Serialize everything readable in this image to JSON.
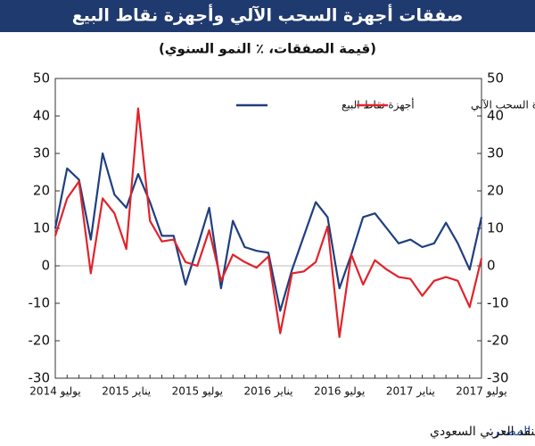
{
  "chart_data": {
    "type": "line",
    "title": "صفقات أجهزة السحب الآلي وأجهزة نقاط البيع",
    "subtitle": "(قيمة الصفقات، ٪ النمو السنوي)",
    "categories": [
      "يوليو 2014",
      null,
      null,
      null,
      null,
      null,
      "يناير 2015",
      null,
      null,
      null,
      null,
      null,
      "يوليو 2015",
      null,
      null,
      null,
      null,
      null,
      "يناير 2016",
      null,
      null,
      null,
      null,
      null,
      "يوليو 2016",
      null,
      null,
      null,
      null,
      null,
      "يناير 2017",
      null,
      null,
      null,
      null,
      null,
      "يوليو 2017"
    ],
    "series": [
      {
        "name": "أجهزة نقاط البيع",
        "color": "#1f3f7f",
        "values": [
          10,
          26,
          23,
          7,
          30,
          19,
          15.5,
          24.5,
          17,
          8,
          8,
          -5,
          5,
          15.5,
          -6,
          12,
          5,
          4,
          3.5,
          -12,
          -1,
          8,
          17,
          13,
          -6,
          3,
          13,
          14,
          10,
          6,
          7,
          5,
          6,
          11.5,
          6,
          -1,
          13
        ]
      },
      {
        "name": "أجهزة السحب الآلي",
        "color": "#e0232b",
        "values": [
          8,
          18,
          22.5,
          -2,
          18,
          14,
          4.5,
          42,
          12,
          6.5,
          7,
          1,
          0,
          9.5,
          -4,
          3,
          1,
          -0.5,
          2.5,
          -18,
          -2,
          -1.5,
          1,
          10.5,
          -19,
          3,
          -5,
          1.5,
          -1,
          -3,
          -3.5,
          -8,
          -4,
          -3,
          -4,
          -11,
          2
        ]
      }
    ],
    "ylim": [
      -30,
      50
    ],
    "yticks": [
      -30,
      -20,
      -10,
      0,
      10,
      20,
      30,
      40,
      50
    ],
    "y2lim": [
      -30,
      50
    ],
    "y2ticks": [
      -30,
      -20,
      -10,
      0,
      10,
      20,
      30,
      40,
      50
    ],
    "grid": false,
    "source_label": "المصدر:",
    "source": "مؤسسة النقد العربي السعودي"
  }
}
